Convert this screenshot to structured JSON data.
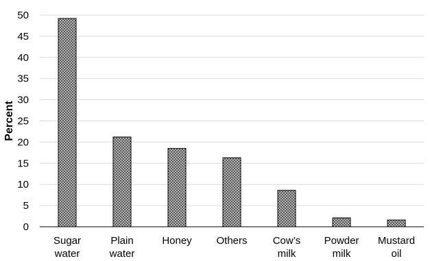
{
  "chart_data": {
    "type": "bar",
    "title": "",
    "xlabel": "",
    "ylabel": "Percent",
    "categories": [
      [
        "Sugar",
        "water"
      ],
      [
        "Plain",
        "water"
      ],
      [
        "Honey"
      ],
      [
        "Others"
      ],
      [
        "Cow’s",
        "milk"
      ],
      [
        "Powder",
        "milk"
      ],
      [
        "Mustard",
        "oil"
      ]
    ],
    "values": [
      49.2,
      21.2,
      18.5,
      16.3,
      8.6,
      2.1,
      1.6
    ],
    "ylim": [
      0,
      50
    ],
    "yticks": [
      "0",
      "5",
      "10",
      "15",
      "20",
      "25",
      "30",
      "35",
      "40",
      "45",
      "50"
    ],
    "grid": true,
    "legend": "none",
    "bar_pattern": "crosshatch",
    "colors": {
      "bar_fill": "#d8d8d8",
      "bar_edge": "#000000",
      "hatch": "#404040",
      "grid": "#d9d9d9",
      "axis": "#000000"
    }
  }
}
